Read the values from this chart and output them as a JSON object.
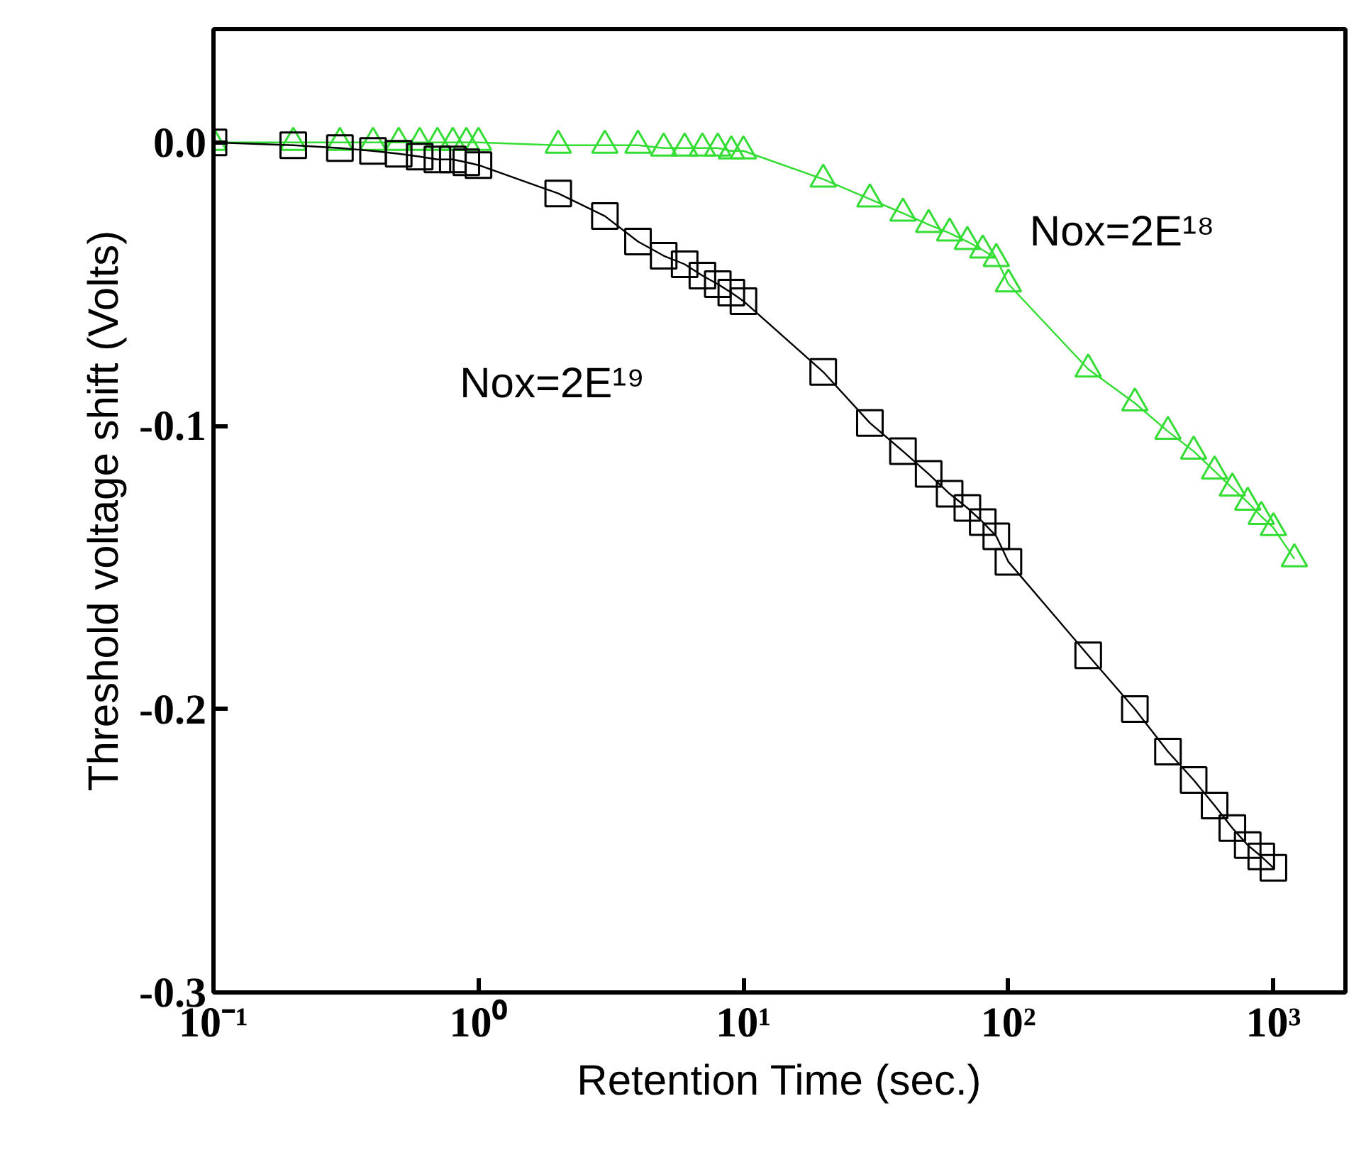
{
  "chart_data": {
    "type": "line",
    "xlabel": "Retention Time (sec.)",
    "ylabel": "Threshold voltage shift (Volts)",
    "log": "x",
    "grid": false,
    "line_style": "solid",
    "xlim": [
      0.1,
      1870
    ],
    "ylim": [
      -0.3,
      0.04
    ],
    "xticks": [
      {
        "value": 0.1,
        "label": "10⁻¹"
      },
      {
        "value": 1,
        "label": "10⁰"
      },
      {
        "value": 10,
        "label": "10¹"
      },
      {
        "value": 100,
        "label": "10²"
      },
      {
        "value": 1000,
        "label": "10³"
      }
    ],
    "yticks": [
      {
        "value": 0.0,
        "label": "0.0"
      },
      -0.1,
      -0.2,
      -0.3
    ],
    "series": [
      {
        "name": "Nox=2E¹⁸",
        "color": "#33dd33",
        "marker": "triangle",
        "x": [
          0.1,
          0.2,
          0.3,
          0.4,
          0.5,
          0.6,
          0.7,
          0.8,
          0.9,
          1,
          2,
          3,
          4,
          5,
          6,
          7,
          8,
          9,
          10,
          20,
          30,
          40,
          50,
          60,
          70,
          80,
          90,
          100,
          200,
          300,
          400,
          500,
          600,
          700,
          800,
          900,
          1000,
          1200
        ],
        "values": [
          0.0,
          0.0,
          0.0,
          0.0,
          0.0,
          0.0,
          0.0,
          0.0,
          0.0,
          0.0,
          -0.001,
          -0.001,
          -0.001,
          -0.002,
          -0.002,
          -0.002,
          -0.002,
          -0.003,
          -0.003,
          -0.013,
          -0.02,
          -0.025,
          -0.029,
          -0.032,
          -0.035,
          -0.038,
          -0.041,
          -0.05,
          -0.08,
          -0.092,
          -0.102,
          -0.109,
          -0.116,
          -0.122,
          -0.127,
          -0.132,
          -0.136,
          -0.147
        ]
      },
      {
        "name": "Nox=2E¹⁹",
        "color": "#000000",
        "marker": "square",
        "x": [
          0.1,
          0.2,
          0.3,
          0.4,
          0.5,
          0.6,
          0.7,
          0.8,
          0.9,
          1,
          2,
          3,
          4,
          5,
          6,
          7,
          8,
          9,
          10,
          20,
          30,
          40,
          50,
          60,
          70,
          80,
          90,
          100,
          200,
          300,
          400,
          500,
          600,
          700,
          800,
          900,
          1000
        ],
        "values": [
          0.0,
          -0.001,
          -0.002,
          -0.003,
          -0.004,
          -0.005,
          -0.006,
          -0.006,
          -0.007,
          -0.008,
          -0.018,
          -0.026,
          -0.035,
          -0.04,
          -0.043,
          -0.047,
          -0.05,
          -0.053,
          -0.056,
          -0.081,
          -0.099,
          -0.109,
          -0.117,
          -0.124,
          -0.129,
          -0.134,
          -0.139,
          -0.148,
          -0.181,
          -0.2,
          -0.215,
          -0.225,
          -0.234,
          -0.242,
          -0.248,
          -0.252,
          -0.256
        ]
      }
    ]
  }
}
